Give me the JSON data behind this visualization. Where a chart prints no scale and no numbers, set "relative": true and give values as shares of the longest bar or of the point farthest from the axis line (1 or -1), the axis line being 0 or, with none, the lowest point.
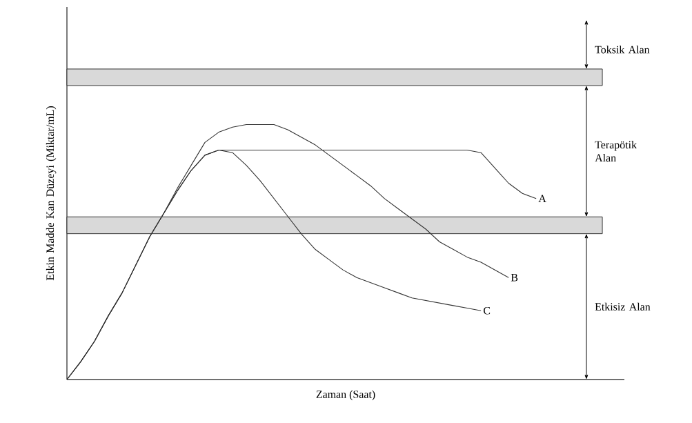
{
  "chart_data": {
    "type": "line",
    "relative": true,
    "xlabel": "Zaman (Saat)",
    "ylabel": "Etkin Madde Kan Düzeyi (Miktar/mL)",
    "categories": [
      null,
      null,
      null,
      null,
      null,
      null,
      null,
      null,
      null,
      null,
      null,
      null,
      null,
      null,
      null,
      null,
      null,
      null,
      null,
      null,
      null,
      null,
      null,
      null,
      null,
      null,
      null,
      null,
      null,
      null,
      null,
      null,
      null,
      null,
      null
    ],
    "series": [
      {
        "name": "A",
        "color": "#333333",
        "values": [
          0,
          0.07,
          0.15,
          0.25,
          0.34,
          0.45,
          0.56,
          0.65,
          0.74,
          0.82,
          0.88,
          0.9,
          0.9,
          0.9,
          0.9,
          0.9,
          0.9,
          0.9,
          0.9,
          0.9,
          0.9,
          0.9,
          0.9,
          0.9,
          0.9,
          0.9,
          0.9,
          0.9,
          0.9,
          0.9,
          0.89,
          0.83,
          0.77,
          0.73,
          0.71
        ]
      },
      {
        "name": "B",
        "color": "#333333",
        "values": [
          0,
          0.07,
          0.15,
          0.25,
          0.34,
          0.45,
          0.56,
          0.65,
          0.75,
          0.84,
          0.93,
          0.97,
          0.99,
          1.0,
          1.0,
          1.0,
          0.98,
          0.95,
          0.92,
          0.88,
          0.84,
          0.8,
          0.76,
          0.71,
          0.67,
          0.63,
          0.59,
          0.54,
          0.51,
          0.48,
          0.46,
          0.43,
          0.4,
          null,
          null
        ]
      },
      {
        "name": "C",
        "color": "#333333",
        "values": [
          0,
          0.07,
          0.15,
          0.25,
          0.34,
          0.45,
          0.56,
          0.65,
          0.74,
          0.82,
          0.88,
          0.9,
          0.89,
          0.84,
          0.78,
          0.71,
          0.64,
          0.57,
          0.51,
          0.47,
          0.43,
          0.4,
          0.38,
          0.36,
          0.34,
          0.32,
          0.31,
          0.3,
          0.29,
          0.28,
          0.27,
          null,
          null,
          null,
          null
        ]
      }
    ],
    "bands": [
      {
        "axis": "y",
        "from": 1.153,
        "to": 1.218,
        "color": "#d9d9d9"
      },
      {
        "axis": "y",
        "from": 0.572,
        "to": 0.638,
        "color": "#d9d9d9"
      }
    ],
    "annotations": [
      "Toksik Alan",
      "Terapötik Alan",
      "Etkisiz Alan"
    ],
    "marker": "none",
    "line_style": "solid"
  }
}
